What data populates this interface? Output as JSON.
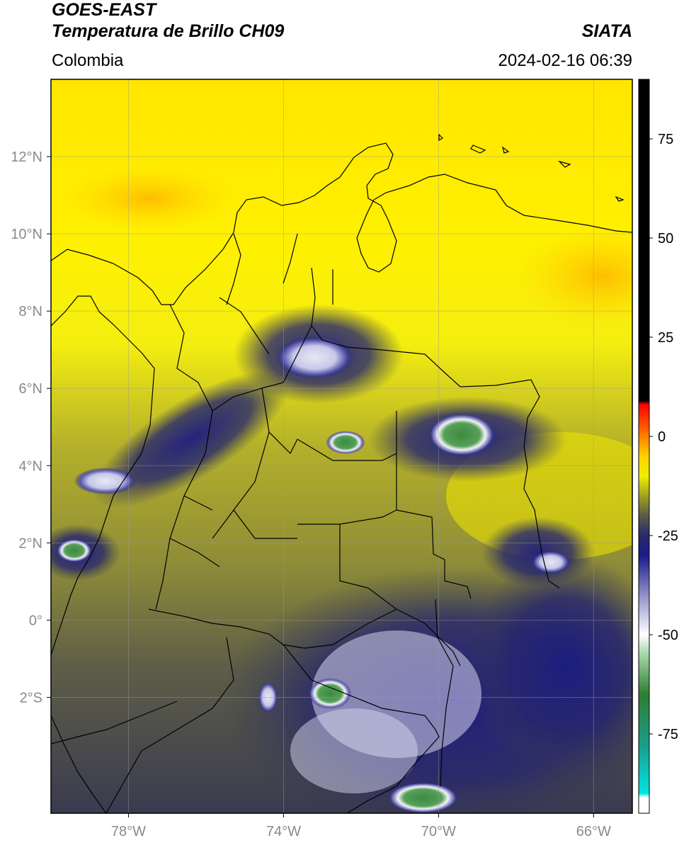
{
  "header": {
    "satellite": "GOES-EAST",
    "product": "Temperatura de Brillo CH09",
    "organization": "SIATA",
    "region": "Colombia",
    "timestamp": "2024-02-16 06:39"
  },
  "map": {
    "lon_range": [
      -80,
      -65
    ],
    "lat_range": [
      -5,
      14
    ],
    "lon_ticks": [
      {
        "value": -78,
        "label": "78°W"
      },
      {
        "value": -74,
        "label": "74°W"
      },
      {
        "value": -70,
        "label": "70°W"
      },
      {
        "value": -66,
        "label": "66°W"
      }
    ],
    "lat_ticks": [
      {
        "value": 12,
        "label": "12°N"
      },
      {
        "value": 10,
        "label": "10°N"
      },
      {
        "value": 8,
        "label": "8°N"
      },
      {
        "value": 6,
        "label": "6°N"
      },
      {
        "value": 4,
        "label": "4°N"
      },
      {
        "value": 2,
        "label": "2°N"
      },
      {
        "value": 0,
        "label": "0°"
      },
      {
        "value": -2,
        "label": "2°S"
      }
    ],
    "colorbar": {
      "range": [
        -95,
        90
      ],
      "ticks": [
        {
          "value": 75,
          "label": "75"
        },
        {
          "value": 50,
          "label": "50"
        },
        {
          "value": 25,
          "label": "25"
        },
        {
          "value": 0,
          "label": "0"
        },
        {
          "value": -25,
          "label": "-25"
        },
        {
          "value": -50,
          "label": "-50"
        },
        {
          "value": -75,
          "label": "-75"
        }
      ],
      "stops": [
        {
          "value": -95,
          "color": "#ffffff"
        },
        {
          "value": -91,
          "color": "#ffffff"
        },
        {
          "value": -90,
          "color": "#00e5e5"
        },
        {
          "value": -78,
          "color": "#1a9e8a"
        },
        {
          "value": -65,
          "color": "#2e7d32"
        },
        {
          "value": -55,
          "color": "#a5d6a7"
        },
        {
          "value": -50,
          "color": "#ffffff"
        },
        {
          "value": -40,
          "color": "#9090c8"
        },
        {
          "value": -30,
          "color": "#1a1a8a"
        },
        {
          "value": -25,
          "color": "#2a2a6a"
        },
        {
          "value": -20,
          "color": "#5a5a48"
        },
        {
          "value": -15,
          "color": "#a0a020"
        },
        {
          "value": -10,
          "color": "#f0f000"
        },
        {
          "value": -5,
          "color": "#ffd000"
        },
        {
          "value": 0,
          "color": "#ff8000"
        },
        {
          "value": 8,
          "color": "#ff0000"
        },
        {
          "value": 9,
          "color": "#000000"
        },
        {
          "value": 90,
          "color": "#000000"
        }
      ]
    },
    "cloud_cells": [
      {
        "lon": -73.2,
        "lat": 6.8,
        "rx": 1.0,
        "ry": 0.55,
        "intensity": "white"
      },
      {
        "lon": -72.4,
        "lat": 4.6,
        "rx": 0.5,
        "ry": 0.3,
        "intensity": "green"
      },
      {
        "lon": -69.4,
        "lat": 4.8,
        "rx": 0.85,
        "ry": 0.55,
        "intensity": "green"
      },
      {
        "lon": -79.4,
        "lat": 1.8,
        "rx": 0.45,
        "ry": 0.3,
        "intensity": "green"
      },
      {
        "lon": -67.1,
        "lat": 1.5,
        "rx": 0.5,
        "ry": 0.3,
        "intensity": "white"
      },
      {
        "lon": -72.8,
        "lat": -1.9,
        "rx": 0.55,
        "ry": 0.4,
        "intensity": "green"
      },
      {
        "lon": -70.4,
        "lat": -4.6,
        "rx": 0.9,
        "ry": 0.4,
        "intensity": "green"
      },
      {
        "lon": -78.6,
        "lat": 3.6,
        "rx": 0.8,
        "ry": 0.35,
        "intensity": "white"
      },
      {
        "lon": -74.4,
        "lat": -2.0,
        "rx": 0.25,
        "ry": 0.4,
        "intensity": "white"
      }
    ]
  }
}
